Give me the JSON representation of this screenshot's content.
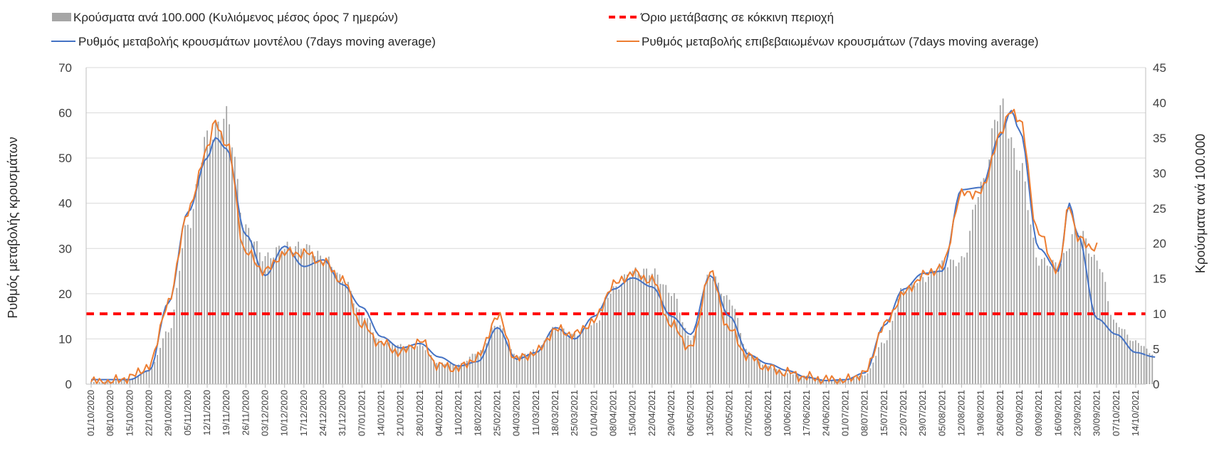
{
  "chart_data": {
    "type": "bar",
    "y_left_label": "Ρυθμός μεταβολής κρουσμάτων",
    "y_right_label": "Κρούσματα ανά 100.000",
    "y_left_range": [
      0,
      70
    ],
    "y_right_range": [
      0,
      45
    ],
    "y_left_ticks": [
      "0",
      "10",
      "20",
      "30",
      "40",
      "50",
      "60",
      "70"
    ],
    "y_right_ticks": [
      "0",
      "5",
      "10",
      "15",
      "20",
      "25",
      "30",
      "35",
      "40",
      "45"
    ],
    "x_ticks": [
      "01/10/2020",
      "08/10/2020",
      "15/10/2020",
      "22/10/2020",
      "29/10/2020",
      "05/11/2020",
      "12/11/2020",
      "19/11/2020",
      "26/11/2020",
      "03/12/2020",
      "10/12/2020",
      "17/12/2020",
      "24/12/2020",
      "31/12/2020",
      "07/01/2021",
      "14/01/2021",
      "21/01/2021",
      "28/01/2021",
      "04/02/2021",
      "11/02/2021",
      "18/02/2021",
      "25/02/2021",
      "04/03/2021",
      "11/03/2021",
      "18/03/2021",
      "25/03/2021",
      "01/04/2021",
      "08/04/2021",
      "15/04/2021",
      "22/04/2021",
      "29/04/2021",
      "06/05/2021",
      "13/05/2021",
      "20/05/2021",
      "27/05/2021",
      "03/06/2021",
      "10/06/2021",
      "17/06/2021",
      "24/06/2021",
      "01/07/2021",
      "08/07/2021",
      "15/07/2021",
      "22/07/2021",
      "29/07/2021",
      "05/08/2021",
      "12/08/2021",
      "19/08/2021",
      "26/08/2021",
      "02/09/2021",
      "09/09/2021",
      "16/09/2021",
      "23/09/2021",
      "30/09/2021",
      "07/10/2021",
      "14/10/2021"
    ],
    "legend": {
      "bars": "Κρούσματα ανά 100.000 (Κυλιόμενος μέσος όρος 7 ημερών)",
      "threshold": "Όριο μετάβασης σε κόκκινη περιοχή",
      "model": "Ρυθμός μεταβολής κρουσμάτων μοντέλου (7days moving average)",
      "confirmed": "Ρυθμός μεταβολής επιβεβαιωμένων κρουσμάτων (7days moving average)"
    },
    "threshold_value_right_axis": 10,
    "colors": {
      "bars": "#a6a6a6",
      "threshold": "#ff0000",
      "model": "#4472c4",
      "confirmed": "#ed7d31",
      "grid": "#d9d9d9"
    },
    "series": [
      {
        "name": "Κρούσματα ανά 100.000 (Κυλιόμενος μέσος όρος 7 ημερών)",
        "axis": "right",
        "x": [
          "01/10/2020",
          "08/10/2020",
          "15/10/2020",
          "22/10/2020",
          "29/10/2020",
          "05/11/2020",
          "12/11/2020",
          "19/11/2020",
          "26/11/2020",
          "03/12/2020",
          "10/12/2020",
          "17/12/2020",
          "24/12/2020",
          "31/12/2020",
          "07/01/2021",
          "14/01/2021",
          "21/01/2021",
          "28/01/2021",
          "04/02/2021",
          "11/02/2021",
          "18/02/2021",
          "25/02/2021",
          "04/03/2021",
          "11/03/2021",
          "18/03/2021",
          "25/03/2021",
          "01/04/2021",
          "08/04/2021",
          "15/04/2021",
          "22/04/2021",
          "29/04/2021",
          "06/05/2021",
          "13/05/2021",
          "20/05/2021",
          "27/05/2021",
          "03/06/2021",
          "10/06/2021",
          "17/06/2021",
          "24/06/2021",
          "01/07/2021",
          "08/07/2021",
          "15/07/2021",
          "22/07/2021",
          "29/07/2021",
          "05/08/2021",
          "12/08/2021",
          "19/08/2021",
          "26/08/2021",
          "02/09/2021",
          "09/09/2021",
          "16/09/2021",
          "23/09/2021",
          "30/09/2021",
          "07/10/2021",
          "14/10/2021",
          "21/10/2021"
        ],
        "values": [
          0.3,
          0.4,
          0.8,
          2.0,
          7.5,
          22.5,
          35.0,
          38.0,
          22.0,
          18.0,
          19.5,
          19.5,
          18.0,
          15.0,
          10.0,
          6.0,
          5.5,
          5.5,
          3.0,
          2.8,
          4.5,
          8.5,
          4.0,
          4.8,
          8.0,
          7.0,
          8.5,
          13.5,
          16.0,
          16.0,
          13.0,
          6.5,
          15.5,
          12.0,
          4.5,
          2.5,
          1.5,
          1.2,
          0.6,
          0.6,
          1.3,
          6.0,
          13.5,
          15.0,
          17.0,
          17.5,
          28.0,
          39.5,
          31.0,
          17.5,
          17.0,
          22.0,
          17.5,
          8.5,
          6.0,
          4.2
        ]
      },
      {
        "name": "Ρυθμός μεταβολής κρουσμάτων μοντέλου (7days moving average)",
        "axis": "left",
        "x": [
          "01/10/2020",
          "08/10/2020",
          "15/10/2020",
          "22/10/2020",
          "29/10/2020",
          "05/11/2020",
          "12/11/2020",
          "15/11/2020",
          "19/11/2020",
          "26/11/2020",
          "03/12/2020",
          "10/12/2020",
          "17/12/2020",
          "24/12/2020",
          "31/12/2020",
          "07/01/2021",
          "14/01/2021",
          "21/01/2021",
          "28/01/2021",
          "04/02/2021",
          "11/02/2021",
          "18/02/2021",
          "25/02/2021",
          "04/03/2021",
          "11/03/2021",
          "18/03/2021",
          "25/03/2021",
          "01/04/2021",
          "08/04/2021",
          "15/04/2021",
          "22/04/2021",
          "29/04/2021",
          "06/05/2021",
          "13/05/2021",
          "20/05/2021",
          "27/05/2021",
          "03/06/2021",
          "10/06/2021",
          "17/06/2021",
          "24/06/2021",
          "01/07/2021",
          "08/07/2021",
          "15/07/2021",
          "22/07/2021",
          "29/07/2021",
          "05/08/2021",
          "12/08/2021",
          "19/08/2021",
          "26/08/2021",
          "30/08/2021",
          "02/09/2021",
          "09/09/2021",
          "16/09/2021",
          "20/09/2021",
          "23/09/2021",
          "30/09/2021",
          "07/10/2021",
          "14/10/2021",
          "21/10/2021"
        ],
        "values": [
          1.0,
          1.0,
          1.0,
          3.0,
          18.0,
          38.0,
          50.0,
          54.5,
          52.0,
          33.0,
          24.0,
          30.5,
          26.0,
          27.5,
          22.0,
          17.0,
          10.5,
          8.0,
          9.0,
          6.0,
          4.0,
          5.0,
          12.5,
          5.5,
          7.0,
          12.5,
          10.0,
          15.0,
          21.0,
          23.5,
          21.5,
          15.0,
          11.0,
          24.0,
          15.0,
          6.5,
          4.5,
          3.0,
          1.5,
          0.8,
          1.0,
          2.5,
          13.0,
          21.0,
          24.5,
          25.0,
          43.0,
          43.5,
          55.0,
          60.5,
          56.0,
          30.0,
          25.0,
          40.0,
          33.0,
          14.5,
          11.0,
          7.0,
          6.0
        ]
      },
      {
        "name": "Ρυθμός μεταβολής επιβεβαιωμένων κρουσμάτων (7days moving average)",
        "axis": "left",
        "x": [
          "01/10/2020",
          "08/10/2020",
          "15/10/2020",
          "22/10/2020",
          "29/10/2020",
          "05/11/2020",
          "12/11/2020",
          "15/11/2020",
          "19/11/2020",
          "26/11/2020",
          "03/12/2020",
          "10/12/2020",
          "17/12/2020",
          "24/12/2020",
          "31/12/2020",
          "07/01/2021",
          "14/01/2021",
          "21/01/2021",
          "28/01/2021",
          "04/02/2021",
          "11/02/2021",
          "18/02/2021",
          "25/02/2021",
          "04/03/2021",
          "11/03/2021",
          "18/03/2021",
          "25/03/2021",
          "01/04/2021",
          "08/04/2021",
          "15/04/2021",
          "22/04/2021",
          "29/04/2021",
          "06/05/2021",
          "13/05/2021",
          "20/05/2021",
          "27/05/2021",
          "03/06/2021",
          "10/06/2021",
          "17/06/2021",
          "24/06/2021",
          "01/07/2021",
          "08/07/2021",
          "15/07/2021",
          "22/07/2021",
          "29/07/2021",
          "05/08/2021",
          "12/08/2021",
          "19/08/2021",
          "26/08/2021",
          "30/08/2021",
          "02/09/2021",
          "09/09/2021",
          "16/09/2021",
          "20/09/2021",
          "23/09/2021",
          "30/09/2021"
        ],
        "values": [
          0.5,
          0.5,
          1.5,
          4.0,
          18.0,
          38.0,
          52.0,
          58.0,
          53.0,
          29.0,
          25.0,
          29.0,
          29.0,
          27.0,
          23.0,
          13.0,
          9.0,
          7.0,
          9.5,
          4.0,
          3.5,
          6.0,
          15.0,
          5.5,
          7.0,
          12.0,
          11.0,
          14.0,
          22.0,
          24.5,
          23.0,
          13.0,
          8.0,
          24.5,
          12.0,
          6.0,
          3.5,
          2.5,
          1.5,
          1.0,
          0.8,
          2.5,
          13.0,
          20.0,
          24.0,
          26.0,
          42.0,
          42.5,
          55.0,
          61.0,
          58.0,
          33.0,
          25.0,
          40.0,
          32.0,
          30.0
        ]
      }
    ]
  }
}
